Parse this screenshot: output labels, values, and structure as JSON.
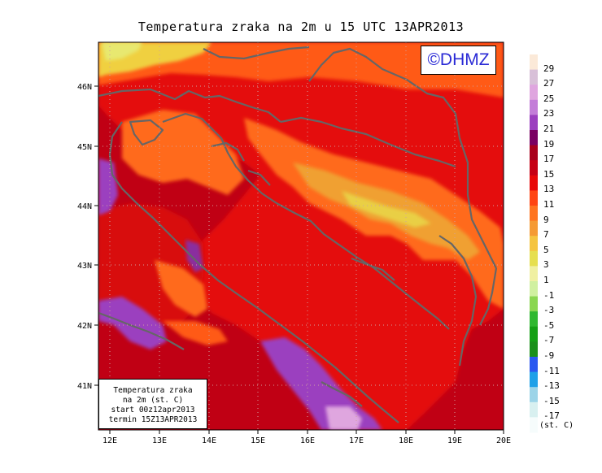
{
  "title": "Temperatura zraka na 2m u 15 UTC 13APR2013",
  "logo": "©DHMZ",
  "info": {
    "line1": "Temperatura zraka",
    "line2": "na 2m (st. C)",
    "line3": "start 00z12apr2013",
    "line4": "termin 15Z13APR2013"
  },
  "x_ticks": [
    "12E",
    "13E",
    "14E",
    "15E",
    "16E",
    "17E",
    "18E",
    "19E",
    "20E"
  ],
  "y_ticks": [
    "46N",
    "45N",
    "44N",
    "43N",
    "42N",
    "41N"
  ],
  "legend": {
    "unit": "(st. C)",
    "labels": [
      "29",
      "27",
      "25",
      "23",
      "21",
      "19",
      "17",
      "15",
      "13",
      "11",
      "9",
      "7",
      "5",
      "3",
      "1",
      "-1",
      "-3",
      "-5",
      "-7",
      "-9",
      "-11",
      "-13",
      "-15",
      "-17"
    ],
    "colors": [
      "#fbe9d8",
      "#d8c0d8",
      "#dfa6df",
      "#c37dd8",
      "#9b3fbf",
      "#7a0062",
      "#a8001c",
      "#c60014",
      "#e80808",
      "#ff4513",
      "#ff7420",
      "#f59a34",
      "#f5c440",
      "#e6df50",
      "#f0f0a2",
      "#d0f0a0",
      "#8ad650",
      "#30b830",
      "#15a015",
      "#1a8f1a",
      "#2a58f0",
      "#1ea0e8",
      "#9cd4e8",
      "#d8f0f0",
      "#f6fcfc"
    ]
  },
  "colors": {
    "background_dark_red": "#c00014",
    "land_red": "#e41010",
    "orange": "#ff6a1a",
    "yellow_orange": "#f0b040",
    "yellow": "#e8d848",
    "purple": "#9b3fbf",
    "coast": "#666666",
    "logo_text": "#2a2ad6"
  }
}
